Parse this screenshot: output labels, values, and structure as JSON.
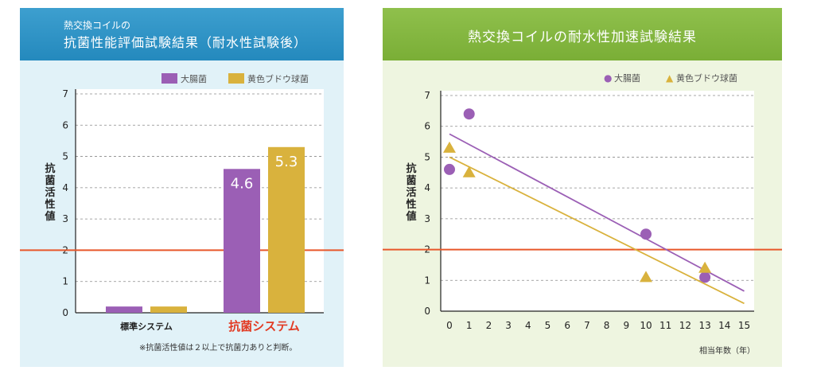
{
  "left_panel": {
    "header_sub": "熱交換コイルの",
    "header_main": "抗菌性能評価試験結果（耐水性試験後）",
    "ylabel": "抗菌活性値",
    "note": "※抗菌活性値は２以上で抗菌力ありと判断。",
    "legend": [
      {
        "label": "大腸菌",
        "color": "#9b5fb5"
      },
      {
        "label": "黄色ブドウ球菌",
        "color": "#d9b23d"
      }
    ]
  },
  "right_panel": {
    "header": "熱交換コイルの耐水性加速試験結果",
    "ylabel": "抗菌活性値",
    "xlabel": "相当年数（年）",
    "legend": [
      {
        "symbol": "●",
        "label": "大腸菌",
        "color": "#9b5fb5"
      },
      {
        "symbol": "▲",
        "label": "黄色ブドウ球菌",
        "color": "#d9b23d"
      }
    ]
  },
  "colors": {
    "purple": "#9b5fb5",
    "gold": "#d9b23d",
    "threshold": "#e8572a",
    "highlight_text": "#e23b23"
  },
  "chart_data": [
    {
      "type": "bar",
      "categories": [
        "標準システム",
        "抗菌システム"
      ],
      "highlight_category": "抗菌システム",
      "series": [
        {
          "name": "大腸菌",
          "values": [
            0.2,
            4.6
          ],
          "labels": [
            "",
            "4.6"
          ]
        },
        {
          "name": "黄色ブドウ球菌",
          "values": [
            0.2,
            5.3
          ],
          "labels": [
            "",
            "5.3"
          ]
        }
      ],
      "ylim": [
        0,
        7
      ],
      "yticks": [
        "0",
        "1",
        "2",
        "3",
        "4",
        "5",
        "6",
        "7"
      ],
      "threshold": 2,
      "ylabel": "抗菌活性値",
      "grid": true,
      "legend": "top-right"
    },
    {
      "type": "scatter",
      "series": [
        {
          "name": "大腸菌",
          "marker": "circle",
          "points": [
            [
              0,
              4.6
            ],
            [
              1,
              6.4
            ],
            [
              10,
              2.5
            ],
            [
              13,
              1.1
            ]
          ],
          "trend": [
            [
              0,
              5.75
            ],
            [
              15,
              0.65
            ]
          ]
        },
        {
          "name": "黄色ブドウ球菌",
          "marker": "triangle",
          "points": [
            [
              0,
              5.3
            ],
            [
              1,
              4.5
            ],
            [
              10,
              1.1
            ],
            [
              13,
              1.4
            ]
          ],
          "trend": [
            [
              0,
              5.0
            ],
            [
              15,
              0.25
            ]
          ]
        }
      ],
      "xlim": [
        0,
        15
      ],
      "ylim": [
        0,
        7
      ],
      "xticks": [
        "0",
        "1",
        "2",
        "3",
        "4",
        "5",
        "6",
        "7",
        "8",
        "9",
        "10",
        "11",
        "12",
        "13",
        "14",
        "15"
      ],
      "yticks": [
        "0",
        "1",
        "2",
        "3",
        "4",
        "5",
        "6",
        "7"
      ],
      "threshold": 2,
      "xlabel": "相当年数（年）",
      "ylabel": "抗菌活性値",
      "grid": true,
      "legend": "top-right"
    }
  ]
}
